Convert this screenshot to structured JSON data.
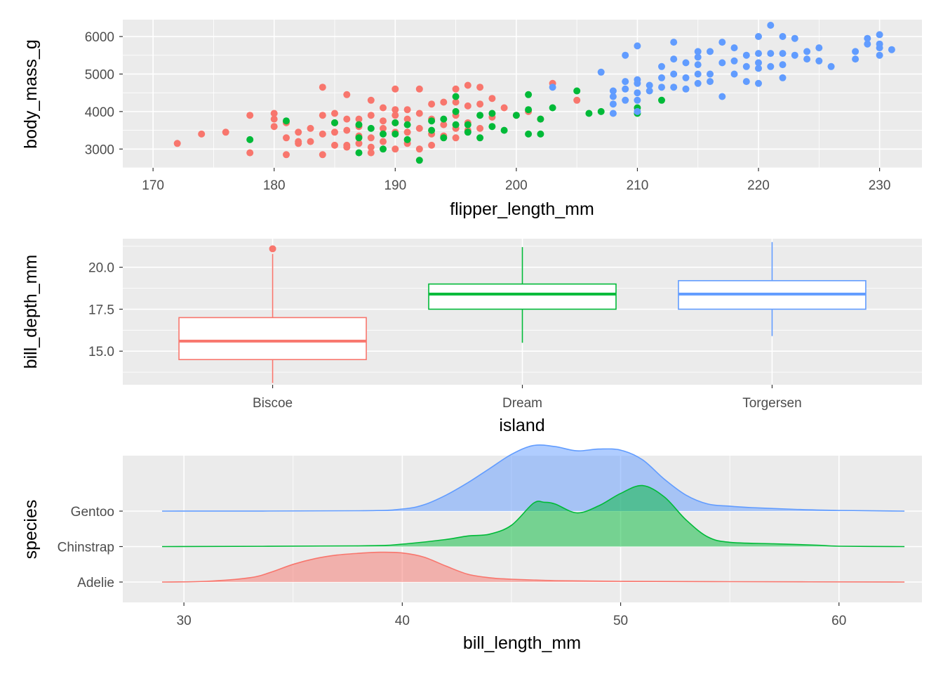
{
  "chart_data": [
    {
      "type": "scatter",
      "xlabel": "flipper_length_mm",
      "ylabel": "body_mass_g",
      "xlim": [
        167.5,
        233.5
      ],
      "ylim": [
        2500,
        6450
      ],
      "x_ticks": [
        170,
        180,
        190,
        200,
        210,
        220,
        230
      ],
      "y_ticks": [
        3000,
        4000,
        5000,
        6000
      ],
      "grid": true,
      "series": [
        {
          "color": "#F8766D",
          "points": [
            [
              172,
              3150
            ],
            [
              174,
              3400
            ],
            [
              176,
              3450
            ],
            [
              178,
              3900
            ],
            [
              178,
              2900
            ],
            [
              180,
              3950
            ],
            [
              180,
              3800
            ],
            [
              180,
              3600
            ],
            [
              181,
              3300
            ],
            [
              181,
              2850
            ],
            [
              181,
              3700
            ],
            [
              182,
              3450
            ],
            [
              182,
              3150
            ],
            [
              182,
              3200
            ],
            [
              183,
              3550
            ],
            [
              183,
              3200
            ],
            [
              184,
              4650
            ],
            [
              184,
              3900
            ],
            [
              184,
              3400
            ],
            [
              184,
              2850
            ],
            [
              185,
              3950
            ],
            [
              185,
              3700
            ],
            [
              185,
              3450
            ],
            [
              185,
              3100
            ],
            [
              186,
              4450
            ],
            [
              186,
              3800
            ],
            [
              186,
              3500
            ],
            [
              186,
              3100
            ],
            [
              186,
              3050
            ],
            [
              187,
              3800
            ],
            [
              187,
              3600
            ],
            [
              187,
              3350
            ],
            [
              187,
              3150
            ],
            [
              188,
              4300
            ],
            [
              188,
              3900
            ],
            [
              188,
              3300
            ],
            [
              188,
              3050
            ],
            [
              188,
              2900
            ],
            [
              189,
              4100
            ],
            [
              189,
              3750
            ],
            [
              189,
              3550
            ],
            [
              189,
              3200
            ],
            [
              190,
              4600
            ],
            [
              190,
              4050
            ],
            [
              190,
              3900
            ],
            [
              190,
              3700
            ],
            [
              190,
              3450
            ],
            [
              190,
              3000
            ],
            [
              191,
              4050
            ],
            [
              191,
              3800
            ],
            [
              191,
              3450
            ],
            [
              191,
              3150
            ],
            [
              192,
              4600
            ],
            [
              192,
              3950
            ],
            [
              192,
              3550
            ],
            [
              192,
              3000
            ],
            [
              193,
              4200
            ],
            [
              193,
              3800
            ],
            [
              193,
              3400
            ],
            [
              193,
              3100
            ],
            [
              194,
              4250
            ],
            [
              194,
              3650
            ],
            [
              194,
              3350
            ],
            [
              195,
              4600
            ],
            [
              195,
              4250
            ],
            [
              195,
              3900
            ],
            [
              195,
              3550
            ],
            [
              195,
              3300
            ],
            [
              196,
              4700
            ],
            [
              196,
              4150
            ],
            [
              196,
              3700
            ],
            [
              196,
              3500
            ],
            [
              197,
              4650
            ],
            [
              197,
              4200
            ],
            [
              197,
              3550
            ],
            [
              198,
              4350
            ],
            [
              198,
              3850
            ],
            [
              199,
              4100
            ],
            [
              200,
              3900
            ],
            [
              201,
              4000
            ],
            [
              202,
              3800
            ],
            [
              203,
              4750
            ],
            [
              205,
              4300
            ]
          ]
        },
        {
          "color": "#00BA38",
          "points": [
            [
              178,
              3250
            ],
            [
              181,
              3750
            ],
            [
              185,
              3700
            ],
            [
              187,
              3650
            ],
            [
              187,
              3300
            ],
            [
              187,
              2900
            ],
            [
              188,
              3550
            ],
            [
              189,
              3400
            ],
            [
              189,
              3000
            ],
            [
              190,
              3700
            ],
            [
              190,
              3400
            ],
            [
              191,
              3650
            ],
            [
              191,
              3250
            ],
            [
              192,
              2700
            ],
            [
              193,
              3750
            ],
            [
              193,
              3500
            ],
            [
              194,
              3800
            ],
            [
              194,
              3300
            ],
            [
              195,
              4400
            ],
            [
              195,
              4000
            ],
            [
              195,
              3650
            ],
            [
              196,
              3650
            ],
            [
              196,
              3450
            ],
            [
              197,
              3900
            ],
            [
              197,
              3300
            ],
            [
              198,
              3950
            ],
            [
              198,
              3600
            ],
            [
              199,
              3500
            ],
            [
              200,
              3900
            ],
            [
              201,
              4450
            ],
            [
              201,
              4050
            ],
            [
              201,
              3400
            ],
            [
              202,
              3800
            ],
            [
              202,
              3400
            ],
            [
              203,
              4100
            ],
            [
              205,
              4550
            ],
            [
              206,
              3950
            ],
            [
              207,
              4000
            ],
            [
              210,
              4100
            ],
            [
              210,
              3950
            ],
            [
              212,
              4300
            ]
          ]
        },
        {
          "color": "#619CFF",
          "points": [
            [
              203,
              4650
            ],
            [
              207,
              5050
            ],
            [
              208,
              4550
            ],
            [
              208,
              4400
            ],
            [
              208,
              4200
            ],
            [
              208,
              3950
            ],
            [
              209,
              5500
            ],
            [
              209,
              4800
            ],
            [
              209,
              4600
            ],
            [
              209,
              4300
            ],
            [
              210,
              5750
            ],
            [
              210,
              4850
            ],
            [
              210,
              4750
            ],
            [
              210,
              4500
            ],
            [
              210,
              4300
            ],
            [
              210,
              4000
            ],
            [
              211,
              4700
            ],
            [
              211,
              4550
            ],
            [
              212,
              5200
            ],
            [
              212,
              4900
            ],
            [
              212,
              4650
            ],
            [
              213,
              5850
            ],
            [
              213,
              5400
            ],
            [
              213,
              5000
            ],
            [
              213,
              4650
            ],
            [
              214,
              5300
            ],
            [
              214,
              4900
            ],
            [
              214,
              4600
            ],
            [
              215,
              5600
            ],
            [
              215,
              5450
            ],
            [
              215,
              5250
            ],
            [
              215,
              5000
            ],
            [
              215,
              4750
            ],
            [
              216,
              5600
            ],
            [
              216,
              5000
            ],
            [
              216,
              4800
            ],
            [
              217,
              5850
            ],
            [
              217,
              5300
            ],
            [
              217,
              4400
            ],
            [
              218,
              5700
            ],
            [
              218,
              5350
            ],
            [
              218,
              5000
            ],
            [
              219,
              5500
            ],
            [
              219,
              5200
            ],
            [
              219,
              4800
            ],
            [
              220,
              6000
            ],
            [
              220,
              5550
            ],
            [
              220,
              5300
            ],
            [
              220,
              5150
            ],
            [
              220,
              4750
            ],
            [
              221,
              6300
            ],
            [
              221,
              5550
            ],
            [
              221,
              5200
            ],
            [
              222,
              6000
            ],
            [
              222,
              5550
            ],
            [
              222,
              5250
            ],
            [
              222,
              4900
            ],
            [
              223,
              5950
            ],
            [
              223,
              5500
            ],
            [
              224,
              5600
            ],
            [
              224,
              5400
            ],
            [
              225,
              5700
            ],
            [
              225,
              5350
            ],
            [
              226,
              5200
            ],
            [
              228,
              5600
            ],
            [
              228,
              5400
            ],
            [
              229,
              5950
            ],
            [
              229,
              5800
            ],
            [
              230,
              6050
            ],
            [
              230,
              5800
            ],
            [
              230,
              5700
            ],
            [
              230,
              5500
            ],
            [
              231,
              5650
            ]
          ]
        }
      ]
    },
    {
      "type": "box",
      "xlabel": "island",
      "ylabel": "bill_depth_mm",
      "ylim": [
        13.0,
        21.7
      ],
      "y_ticks": [
        15.0,
        17.5,
        20.0
      ],
      "y_tick_labels": [
        "15.0",
        "17.5",
        "20.0"
      ],
      "grid": true,
      "categories": [
        "Biscoe",
        "Dream",
        "Torgersen"
      ],
      "boxes": [
        {
          "category": "Biscoe",
          "color": "#F8766D",
          "min": 13.1,
          "q1": 14.5,
          "median": 15.6,
          "q3": 17.0,
          "max": 20.8,
          "outliers": [
            21.1
          ]
        },
        {
          "category": "Dream",
          "color": "#00BA38",
          "min": 15.5,
          "q1": 17.5,
          "median": 18.4,
          "q3": 19.0,
          "max": 21.2,
          "outliers": []
        },
        {
          "category": "Torgersen",
          "color": "#619CFF",
          "min": 15.9,
          "q1": 17.5,
          "median": 18.4,
          "q3": 19.2,
          "max": 21.5,
          "outliers": []
        }
      ]
    },
    {
      "type": "density_ridges",
      "xlabel": "bill_length_mm",
      "ylabel": "species",
      "xlim": [
        27.2,
        63.8
      ],
      "x_ticks": [
        30,
        40,
        50,
        60
      ],
      "grid": true,
      "categories": [
        "Adelie",
        "Chinstrap",
        "Gentoo"
      ],
      "series": [
        {
          "name": "Adelie",
          "color": "#F8766D",
          "x": [
            29,
            31,
            33,
            34,
            35,
            36,
            37,
            38,
            39,
            40,
            41,
            42,
            43,
            44,
            45,
            47,
            50,
            55,
            63
          ],
          "height": [
            0,
            0.02,
            0.12,
            0.28,
            0.5,
            0.66,
            0.76,
            0.81,
            0.84,
            0.82,
            0.7,
            0.45,
            0.22,
            0.12,
            0.08,
            0.04,
            0.02,
            0.01,
            0
          ]
        },
        {
          "name": "Chinstrap",
          "color": "#00BA38",
          "x": [
            29,
            38,
            40,
            42,
            43,
            44,
            45,
            46,
            46.5,
            47,
            48,
            49,
            50,
            51,
            52,
            53,
            54,
            55,
            57,
            59,
            60,
            63
          ],
          "height": [
            0,
            0.02,
            0.07,
            0.2,
            0.3,
            0.35,
            0.6,
            1.22,
            1.25,
            1.2,
            0.95,
            1.15,
            1.5,
            1.72,
            1.4,
            0.75,
            0.27,
            0.12,
            0.08,
            0.04,
            0.01,
            0
          ]
        },
        {
          "name": "Gentoo",
          "color": "#619CFF",
          "x": [
            29,
            38,
            40,
            41,
            42,
            43,
            44,
            45,
            46,
            47,
            48,
            49,
            50,
            51,
            52,
            53,
            54,
            55,
            56,
            58,
            60,
            63
          ],
          "height": [
            0,
            0.01,
            0.06,
            0.18,
            0.45,
            0.8,
            1.2,
            1.6,
            1.85,
            1.82,
            1.7,
            1.75,
            1.72,
            1.45,
            0.9,
            0.45,
            0.2,
            0.14,
            0.1,
            0.05,
            0.02,
            0
          ]
        }
      ]
    }
  ]
}
